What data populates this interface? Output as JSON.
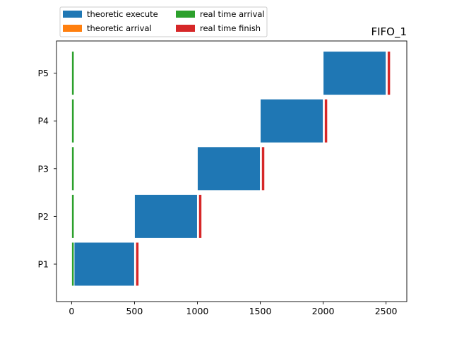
{
  "chart_data": {
    "type": "gantt",
    "title": "FIFO_1",
    "xlabel": "",
    "ylabel": "",
    "xlim": [
      -120,
      2665
    ],
    "xticks": [
      0,
      500,
      1000,
      1500,
      2000,
      2500
    ],
    "xtick_labels": [
      "0",
      "500",
      "1000",
      "1500",
      "2000",
      "2500"
    ],
    "categories": [
      "P1",
      "P2",
      "P3",
      "P4",
      "P5"
    ],
    "grid": false,
    "legend_position": "top-left, above plot",
    "legend": [
      {
        "name": "theoretic execute",
        "color": "#1f77b4"
      },
      {
        "name": "theoretic arrival",
        "color": "#ff7f0e"
      },
      {
        "name": "real time arrival",
        "color": "#2ca02c"
      },
      {
        "name": "real time finish",
        "color": "#d62728"
      }
    ],
    "series": [
      {
        "name": "theoretic execute",
        "color": "#1f77b4",
        "bars": [
          {
            "process": "P1",
            "start": 0,
            "end": 500
          },
          {
            "process": "P2",
            "start": 500,
            "end": 1000
          },
          {
            "process": "P3",
            "start": 1000,
            "end": 1500
          },
          {
            "process": "P4",
            "start": 1500,
            "end": 2000
          },
          {
            "process": "P5",
            "start": 2000,
            "end": 2500
          }
        ]
      },
      {
        "name": "theoretic arrival",
        "color": "#ff7f0e",
        "bars": [
          {
            "process": "P1",
            "start": 0,
            "end": 0
          },
          {
            "process": "P2",
            "start": 0,
            "end": 0
          },
          {
            "process": "P3",
            "start": 0,
            "end": 0
          },
          {
            "process": "P4",
            "start": 0,
            "end": 0
          },
          {
            "process": "P5",
            "start": 0,
            "end": 0
          }
        ]
      },
      {
        "name": "real time arrival",
        "color": "#2ca02c",
        "bars": [
          {
            "process": "P1",
            "start": 0,
            "end": 20
          },
          {
            "process": "P2",
            "start": 0,
            "end": 20
          },
          {
            "process": "P3",
            "start": 0,
            "end": 20
          },
          {
            "process": "P4",
            "start": 0,
            "end": 20
          },
          {
            "process": "P5",
            "start": 0,
            "end": 20
          }
        ]
      },
      {
        "name": "real time finish",
        "color": "#d62728",
        "bars": [
          {
            "process": "P1",
            "start": 510,
            "end": 535
          },
          {
            "process": "P2",
            "start": 1010,
            "end": 1035
          },
          {
            "process": "P3",
            "start": 1510,
            "end": 1535
          },
          {
            "process": "P4",
            "start": 2010,
            "end": 2035
          },
          {
            "process": "P5",
            "start": 2510,
            "end": 2535
          }
        ]
      }
    ]
  }
}
